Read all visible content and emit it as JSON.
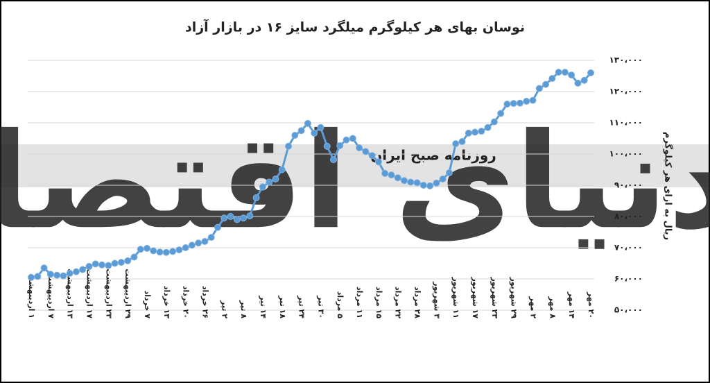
{
  "chart_data": {
    "type": "line",
    "title": "نوسان بهای هر کیلوگرم میلگرد سایز ۱۶ در بازار آزاد",
    "y_label": "ریال به ازای هر کیلوگرم",
    "watermarks": [
      "دنیای اقتصاد",
      "روزنامه صبح ایران"
    ],
    "categories": [
      "۱ اردیبهشت",
      null,
      null,
      "۷ اردیبهشت",
      null,
      null,
      "۱۳ اردیبهشت",
      null,
      null,
      "۱۷ اردیبهشت",
      null,
      null,
      "۲۳ اردیبهشت",
      null,
      null,
      "۲۹ اردیبهشت",
      null,
      null,
      "۷ خرداد",
      null,
      null,
      "۱۳ خرداد",
      null,
      null,
      "۲۰ خرداد",
      null,
      null,
      "۲۶ خرداد",
      null,
      null,
      "۲ تیر",
      null,
      null,
      "۸ تیر",
      null,
      null,
      "۱۴ تیر",
      null,
      null,
      "۱۸ تیر",
      null,
      null,
      "۲۴ تیر",
      null,
      null,
      "۳۰ تیر",
      null,
      null,
      "۵ مرداد",
      null,
      null,
      "۱۱ مرداد",
      null,
      null,
      "۱۵ مرداد",
      null,
      null,
      "۲۲ مرداد",
      null,
      null,
      "۲۸ مرداد",
      null,
      null,
      "۳ شهریور",
      null,
      null,
      "۱۱ شهریور",
      null,
      null,
      "۱۷ شهریور",
      null,
      null,
      "۲۳ شهریور",
      null,
      null,
      "۲۹ شهریور",
      null,
      null,
      "۲ مهر",
      null,
      null,
      "۸ مهر",
      null,
      null,
      "۱۴ مهر",
      null,
      null,
      "۲۰ مهر"
    ],
    "series": [
      {
        "color": "#5b9bd5",
        "values": [
          60500,
          60800,
          63500,
          61500,
          61200,
          61000,
          61800,
          62300,
          63000,
          64000,
          64800,
          64500,
          64300,
          65000,
          65300,
          65800,
          67000,
          69500,
          69800,
          69000,
          68600,
          68500,
          68800,
          69300,
          70000,
          70800,
          71500,
          72000,
          73300,
          76500,
          79500,
          80000,
          79000,
          79500,
          80200,
          86000,
          89500,
          91000,
          92000,
          95000,
          102500,
          106000,
          107500,
          109800,
          106700,
          108500,
          102500,
          98200,
          102700,
          104500,
          105000,
          102000,
          100800,
          99500,
          97500,
          93800,
          93300,
          92400,
          91500,
          91000,
          90800,
          90000,
          89800,
          90700,
          92000,
          94000,
          103300,
          104000,
          106700,
          107000,
          107300,
          108500,
          110300,
          113000,
          116000,
          116200,
          116300,
          116900,
          117200,
          121000,
          122300,
          124200,
          126200,
          126200,
          125300,
          122700,
          123600,
          126000
        ]
      }
    ],
    "ylim": [
      50000,
      130000
    ],
    "yticks": [
      {
        "value": 50000,
        "label": "۵۰،۰۰۰"
      },
      {
        "value": 60000,
        "label": "۶۰،۰۰۰"
      },
      {
        "value": 70000,
        "label": "۷۰،۰۰۰"
      },
      {
        "value": 80000,
        "label": "۸۰،۰۰۰"
      },
      {
        "value": 90000,
        "label": "۹۰،۰۰۰"
      },
      {
        "value": 100000,
        "label": "۱۰۰،۰۰۰"
      },
      {
        "value": 110000,
        "label": "۱۱۰،۰۰۰"
      },
      {
        "value": 120000,
        "label": "۱۲۰،۰۰۰"
      },
      {
        "value": 130000,
        "label": "۱۳۰،۰۰۰"
      }
    ],
    "grid": true,
    "y_axis_side": "right"
  }
}
